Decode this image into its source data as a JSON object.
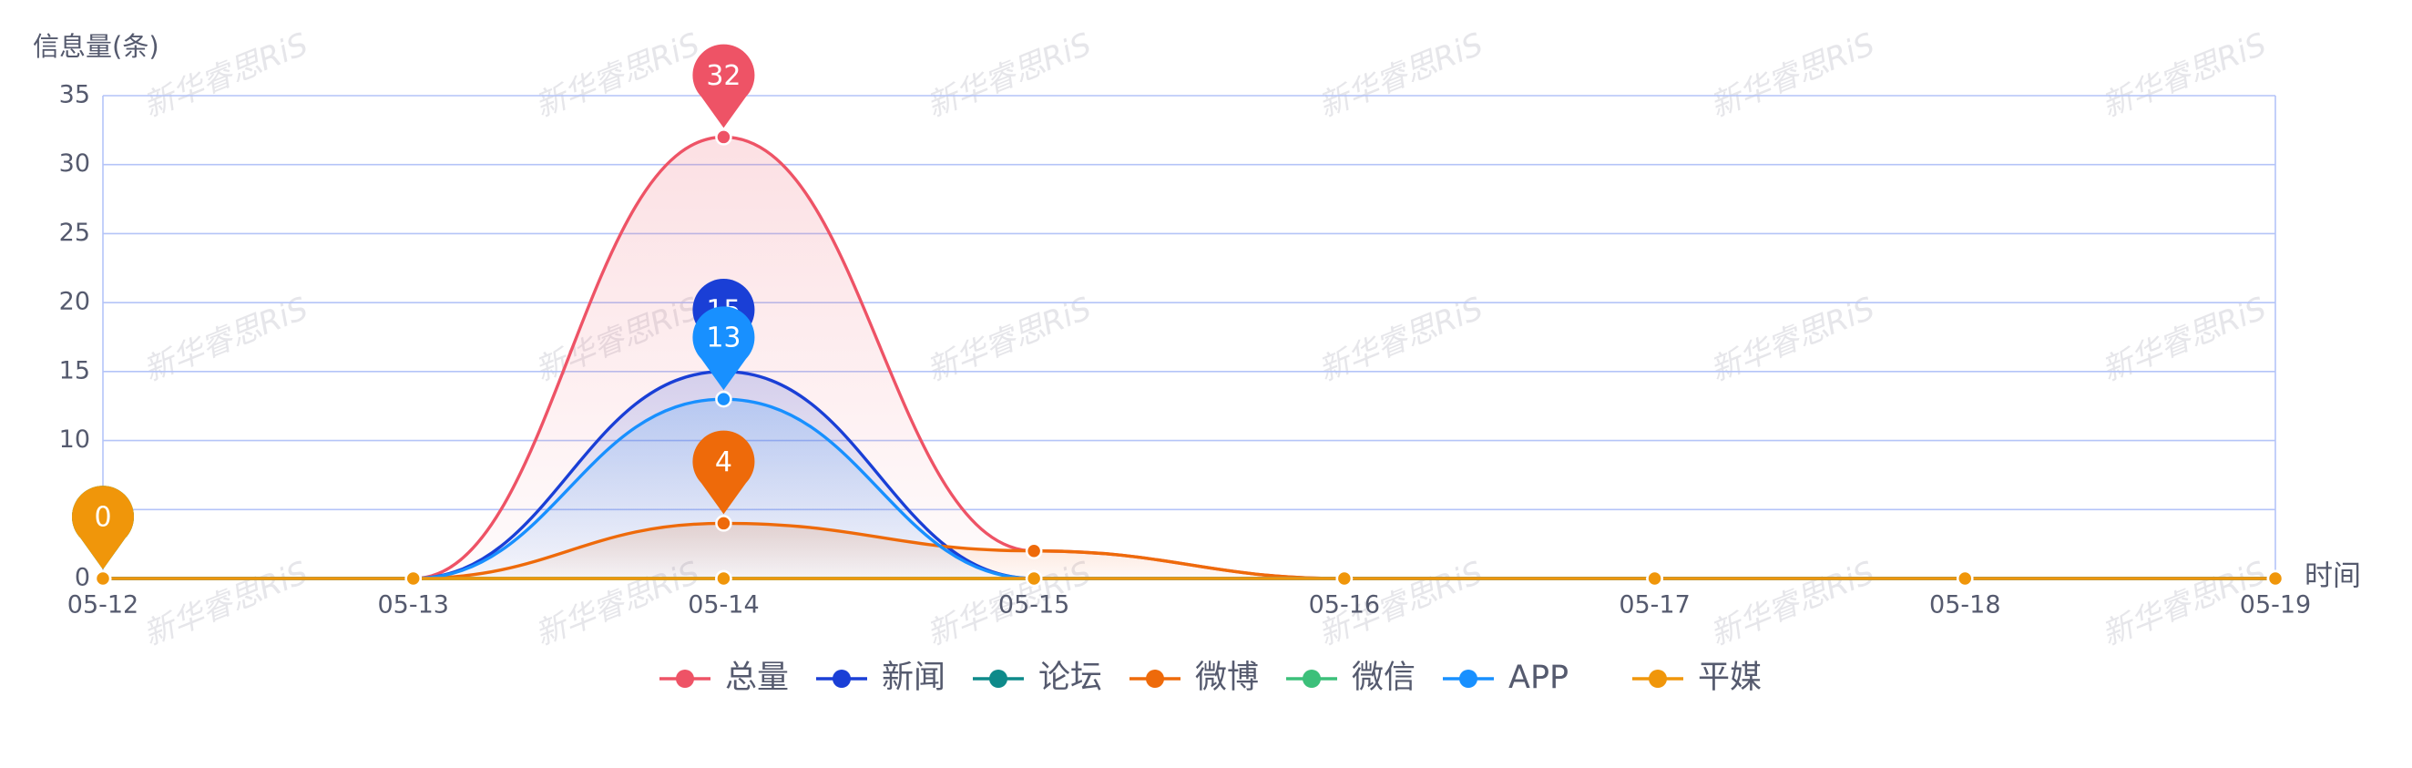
{
  "watermark": "新华睿思RiS",
  "chart_data": {
    "type": "line",
    "y_label": "信息量(条)",
    "x_label": "时间",
    "x": [
      "05-12",
      "05-13",
      "05-14",
      "05-15",
      "05-16",
      "05-17",
      "05-18",
      "05-19"
    ],
    "ylim": [
      0,
      35
    ],
    "yticks": [
      0,
      5,
      10,
      15,
      20,
      25,
      30,
      35
    ],
    "grid": true,
    "series": [
      {
        "name": "总量",
        "color": "#ee5366",
        "values": [
          0,
          0,
          32,
          2,
          0,
          0,
          0,
          0
        ]
      },
      {
        "name": "新闻",
        "color": "#1a3fd6",
        "values": [
          0,
          0,
          15,
          0,
          0,
          0,
          0,
          0
        ]
      },
      {
        "name": "论坛",
        "color": "#0e8a8a",
        "values": [
          0,
          0,
          0,
          0,
          0,
          0,
          0,
          0
        ]
      },
      {
        "name": "微博",
        "color": "#ee6a0a",
        "values": [
          0,
          0,
          4,
          2,
          0,
          0,
          0,
          0
        ]
      },
      {
        "name": "微信",
        "color": "#3cc07a",
        "values": [
          0,
          0,
          0,
          0,
          0,
          0,
          0,
          0
        ]
      },
      {
        "name": "APP",
        "color": "#1890ff",
        "values": [
          0,
          0,
          13,
          0,
          0,
          0,
          0,
          0
        ]
      },
      {
        "name": "平媒",
        "color": "#f0960a",
        "values": [
          0,
          0,
          0,
          0,
          0,
          0,
          0,
          0
        ]
      }
    ]
  }
}
